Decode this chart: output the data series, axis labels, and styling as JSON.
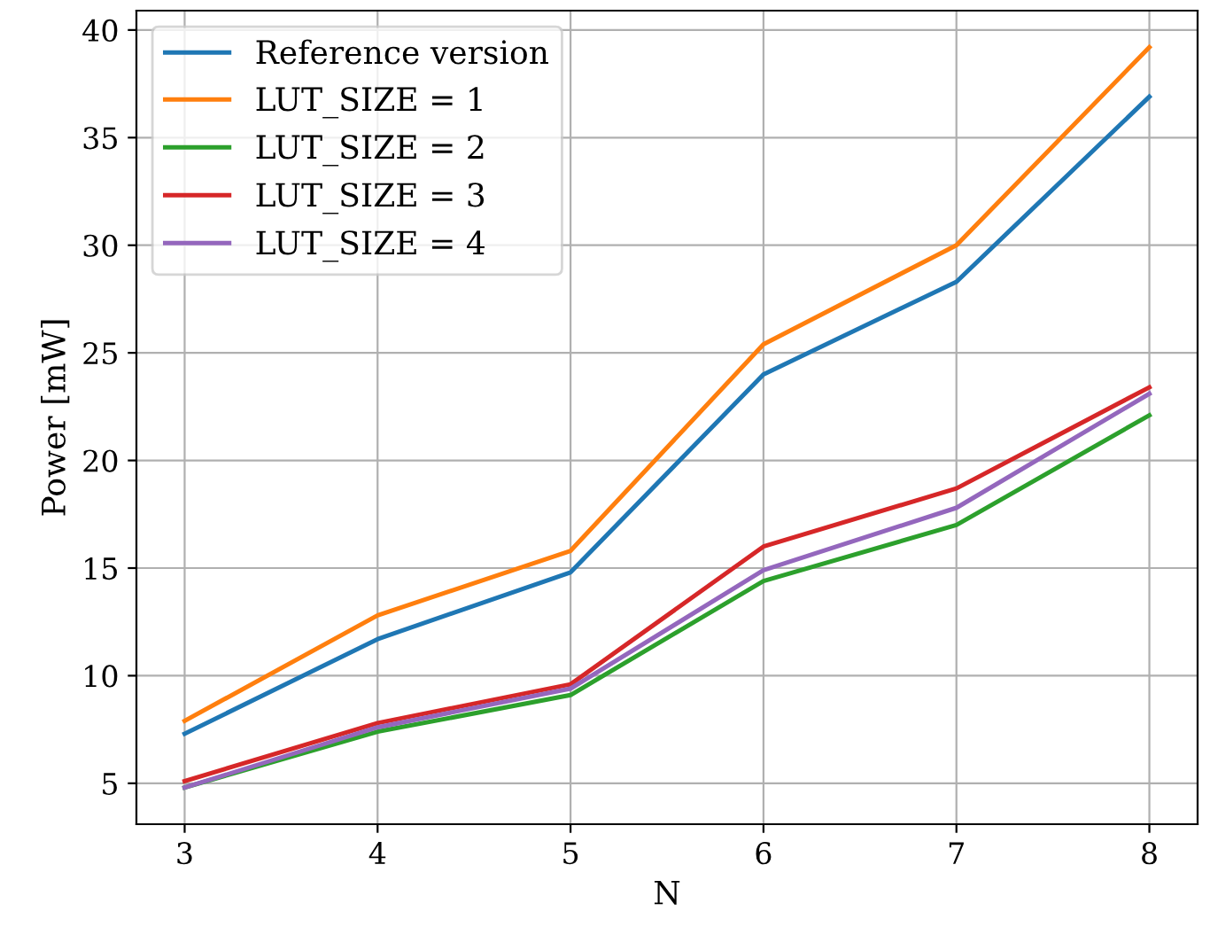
{
  "chart_data": {
    "type": "line",
    "xlabel": "N",
    "ylabel": "Power [mW]",
    "x": [
      3,
      4,
      5,
      6,
      7,
      8
    ],
    "series": [
      {
        "name": "Reference version",
        "color": "#1f77b4",
        "values": [
          7.3,
          11.7,
          14.8,
          24.0,
          28.3,
          36.9
        ]
      },
      {
        "name": "LUT_SIZE = 1",
        "color": "#ff7f0e",
        "values": [
          7.9,
          12.8,
          15.8,
          25.4,
          30.0,
          39.2
        ]
      },
      {
        "name": "LUT_SIZE = 2",
        "color": "#2ca02c",
        "values": [
          4.8,
          7.4,
          9.1,
          14.4,
          17.0,
          22.1
        ]
      },
      {
        "name": "LUT_SIZE = 3",
        "color": "#d62728",
        "values": [
          5.1,
          7.8,
          9.6,
          16.0,
          18.7,
          23.4
        ]
      },
      {
        "name": "LUT_SIZE = 4",
        "color": "#9467bd",
        "values": [
          4.8,
          7.6,
          9.4,
          14.9,
          17.8,
          23.1
        ]
      }
    ],
    "xlim": [
      2.75,
      8.25
    ],
    "ylim": [
      3.1,
      40.9
    ],
    "xticks": [
      3,
      4,
      5,
      6,
      7,
      8
    ],
    "yticks": [
      5,
      10,
      15,
      20,
      25,
      30,
      35,
      40
    ],
    "grid": true,
    "legend": "top left",
    "line_style": "solid"
  }
}
